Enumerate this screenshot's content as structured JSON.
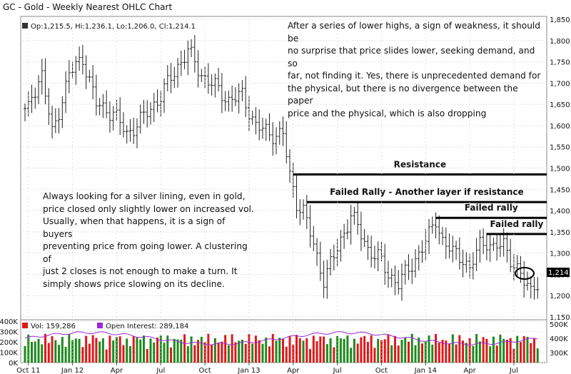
{
  "chart_data": {
    "type": "ohlc",
    "title": "GC - Gold - Weekly Nearest OHLC Chart",
    "ohlc_readout": "Op:1,215.5, Hi:1,236.1, Lo:1,206.0, Cl:1,214.1",
    "last_price_label": "1,214.1",
    "price_ylim": [
      1150,
      1850
    ],
    "price_ticks": [
      "1,850.0",
      "1,800.0",
      "1,750.0",
      "1,700.0",
      "1,650.0",
      "1,600.0",
      "1,550.0",
      "1,500.0",
      "1,450.0",
      "1,400.0",
      "1,350.0",
      "1,300.0",
      "1,250.0",
      "1,200.0",
      "1,150.0"
    ],
    "x_ticks": [
      "Oct 11",
      "Jan 12",
      "Apr",
      "Jul",
      "Oct",
      "Jan 13",
      "Apr",
      "Jul",
      "Oct",
      "Jan 14",
      "Apr",
      "Jul"
    ],
    "volume_legend": "Vol: 159,286",
    "oi_legend": "Open Interest: 289,184",
    "volume_ticks_left": [
      "400K",
      "300K",
      "200K",
      "100K",
      "0K"
    ],
    "oi_ticks_right": [
      "500K",
      "400K",
      "300K"
    ],
    "volume_ylim": [
      0,
      400000
    ],
    "oi_ylim": [
      230000,
      520000
    ],
    "anchors": [
      {
        "week": 0,
        "close": 1640
      },
      {
        "week": 5,
        "close": 1720
      },
      {
        "week": 8,
        "close": 1580
      },
      {
        "week": 13,
        "close": 1720
      },
      {
        "week": 17,
        "close": 1760
      },
      {
        "week": 21,
        "close": 1650
      },
      {
        "week": 26,
        "close": 1630
      },
      {
        "week": 30,
        "close": 1580
      },
      {
        "week": 35,
        "close": 1620
      },
      {
        "week": 40,
        "close": 1670
      },
      {
        "week": 45,
        "close": 1740
      },
      {
        "week": 48,
        "close": 1775
      },
      {
        "week": 52,
        "close": 1720
      },
      {
        "week": 56,
        "close": 1690
      },
      {
        "week": 60,
        "close": 1660
      },
      {
        "week": 64,
        "close": 1670
      },
      {
        "week": 68,
        "close": 1600
      },
      {
        "week": 72,
        "close": 1580
      },
      {
        "week": 76,
        "close": 1580
      },
      {
        "week": 78,
        "close": 1480
      },
      {
        "week": 80,
        "close": 1420
      },
      {
        "week": 82,
        "close": 1400
      },
      {
        "week": 86,
        "close": 1290
      },
      {
        "week": 88,
        "close": 1240
      },
      {
        "week": 91,
        "close": 1290
      },
      {
        "week": 94,
        "close": 1350
      },
      {
        "week": 96,
        "close": 1390
      },
      {
        "week": 98,
        "close": 1360
      },
      {
        "week": 101,
        "close": 1310
      },
      {
        "week": 104,
        "close": 1290
      },
      {
        "week": 107,
        "close": 1250
      },
      {
        "week": 110,
        "close": 1230
      },
      {
        "week": 113,
        "close": 1260
      },
      {
        "week": 116,
        "close": 1300
      },
      {
        "week": 119,
        "close": 1340
      },
      {
        "week": 121,
        "close": 1380
      },
      {
        "week": 123,
        "close": 1330
      },
      {
        "week": 126,
        "close": 1300
      },
      {
        "week": 129,
        "close": 1290
      },
      {
        "week": 131,
        "close": 1260
      },
      {
        "week": 134,
        "close": 1320
      },
      {
        "week": 136,
        "close": 1330
      },
      {
        "week": 138,
        "close": 1310
      },
      {
        "week": 141,
        "close": 1320
      },
      {
        "week": 143,
        "close": 1290
      },
      {
        "week": 145,
        "close": 1260
      },
      {
        "week": 147,
        "close": 1230
      },
      {
        "week": 149,
        "close": 1214
      }
    ],
    "annotations": [
      {
        "text": "Resistance",
        "level": 1485,
        "from_week": 79,
        "to_week": 160
      },
      {
        "text": "Failed Rally - Another layer if resistance",
        "level": 1420,
        "from_week": 83,
        "to_week": 160
      },
      {
        "text": "Failed rally",
        "level": 1383,
        "from_week": 121,
        "to_week": 155
      },
      {
        "text": "Failed rally",
        "level": 1345,
        "from_week": 136,
        "to_week": 160
      }
    ]
  },
  "notes": {
    "top_right": "After a series of lower highs, a sign of weakness, it should be\nno surprise that price slides lower, seeking demand, and so\nfar, not finding it.  Yes, there is unprecedented demand for\nthe physical, but there is no divergence between the paper\nprice and the physical, which is also dropping",
    "bottom_left": "Always looking for a silver lining, even in gold,\nprice closed only slightly lower on increased vol.\nUsually, when that happens, it is a sign of buyers\npreventing price from going lower.  A clustering of\njust 2 closes is not enough to make a turn.  It\nsimply shows price slowing on its decline."
  },
  "colors": {
    "bars": "#222222",
    "volume_up": "#1e8a1e",
    "volume_down": "#e01818",
    "open_interest": "#9a2ad8",
    "lines": "#000000",
    "panel_border": "#888888",
    "grid": "#c8c8c8"
  }
}
